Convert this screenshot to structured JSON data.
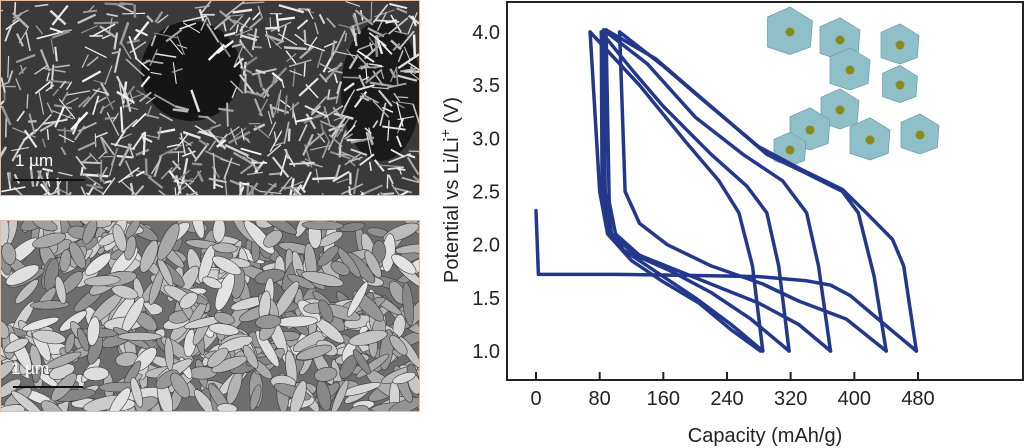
{
  "images": {
    "top": {
      "scale_label": "1 µm",
      "description_color": "#8a8a8a"
    },
    "bottom": {
      "scale_label": "1 µm"
    }
  },
  "colors": {
    "curve": "#23388a",
    "inset_polyhedra": "#8fbfc8",
    "inset_atoms": "#8a8a1c"
  },
  "chart_data": {
    "type": "line",
    "xlabel": "Capacity (mAh/g)",
    "ylabel": "Potential vs Li/Li",
    "ylabel_superscript": "+",
    "ylabel_unit": " (V)",
    "xlim": [
      -25,
      515
    ],
    "ylim": [
      0.73,
      4.3
    ],
    "xticks": [
      0,
      80,
      160,
      240,
      320,
      400,
      480
    ],
    "yticks": [
      1.0,
      1.5,
      2.0,
      2.5,
      3.0,
      3.5,
      4.0
    ],
    "ytick_labels": [
      "1.0",
      "1.5",
      "2.0",
      "2.5",
      "3.0",
      "3.5",
      "4.0"
    ],
    "grid": false,
    "series": [
      {
        "points": [
          [
            0,
            2.32
          ],
          [
            3,
            1.72
          ],
          [
            100,
            1.72
          ],
          [
            200,
            1.71
          ],
          [
            280,
            1.7
          ],
          [
            340,
            1.66
          ],
          [
            370,
            1.62
          ],
          [
            395,
            1.52
          ],
          [
            430,
            1.3
          ],
          [
            478,
            1.0
          ]
        ]
      },
      {
        "points": [
          [
            478,
            1.0
          ],
          [
            462,
            1.8
          ],
          [
            448,
            2.05
          ],
          [
            415,
            2.3
          ],
          [
            385,
            2.52
          ],
          [
            330,
            2.72
          ],
          [
            280,
            2.92
          ],
          [
            210,
            3.36
          ],
          [
            160,
            3.68
          ],
          [
            105,
            4.0
          ]
        ]
      },
      {
        "points": [
          [
            105,
            4.0
          ],
          [
            112,
            2.5
          ],
          [
            130,
            2.2
          ],
          [
            165,
            2.0
          ],
          [
            220,
            1.8
          ],
          [
            285,
            1.63
          ],
          [
            330,
            1.47
          ],
          [
            390,
            1.3
          ],
          [
            440,
            1.0
          ]
        ]
      },
      {
        "points": [
          [
            440,
            1.0
          ],
          [
            425,
            1.7
          ],
          [
            405,
            2.3
          ],
          [
            385,
            2.5
          ],
          [
            340,
            2.67
          ],
          [
            290,
            2.85
          ],
          [
            220,
            3.3
          ],
          [
            150,
            3.75
          ],
          [
            88,
            4.02
          ]
        ]
      },
      {
        "points": [
          [
            88,
            4.02
          ],
          [
            92,
            2.4
          ],
          [
            100,
            2.1
          ],
          [
            130,
            1.9
          ],
          [
            180,
            1.75
          ],
          [
            230,
            1.6
          ],
          [
            280,
            1.45
          ],
          [
            330,
            1.25
          ],
          [
            370,
            1.0
          ]
        ]
      },
      {
        "points": [
          [
            370,
            1.0
          ],
          [
            355,
            1.8
          ],
          [
            340,
            2.3
          ],
          [
            310,
            2.6
          ],
          [
            260,
            2.85
          ],
          [
            200,
            3.2
          ],
          [
            140,
            3.7
          ],
          [
            85,
            4.02
          ]
        ]
      },
      {
        "points": [
          [
            85,
            4.02
          ],
          [
            87,
            2.5
          ],
          [
            95,
            2.1
          ],
          [
            125,
            1.9
          ],
          [
            170,
            1.75
          ],
          [
            220,
            1.55
          ],
          [
            270,
            1.3
          ],
          [
            318,
            1.0
          ]
        ]
      },
      {
        "points": [
          [
            318,
            1.0
          ],
          [
            305,
            1.8
          ],
          [
            290,
            2.3
          ],
          [
            265,
            2.55
          ],
          [
            220,
            2.85
          ],
          [
            160,
            3.3
          ],
          [
            120,
            3.65
          ],
          [
            82,
            4.0
          ]
        ]
      },
      {
        "points": [
          [
            82,
            4.0
          ],
          [
            83,
            2.5
          ],
          [
            90,
            2.15
          ],
          [
            110,
            1.95
          ],
          [
            150,
            1.75
          ],
          [
            200,
            1.5
          ],
          [
            245,
            1.25
          ],
          [
            285,
            1.0
          ]
        ]
      },
      {
        "points": [
          [
            285,
            1.0
          ],
          [
            272,
            1.8
          ],
          [
            255,
            2.3
          ],
          [
            230,
            2.6
          ],
          [
            190,
            2.95
          ],
          [
            130,
            3.5
          ],
          [
            68,
            4.0
          ]
        ]
      },
      {
        "points": [
          [
            68,
            4.0
          ],
          [
            80,
            2.5
          ],
          [
            90,
            2.1
          ],
          [
            120,
            1.85
          ],
          [
            160,
            1.65
          ],
          [
            205,
            1.45
          ],
          [
            245,
            1.2
          ],
          [
            282,
            1.0
          ]
        ]
      }
    ]
  }
}
